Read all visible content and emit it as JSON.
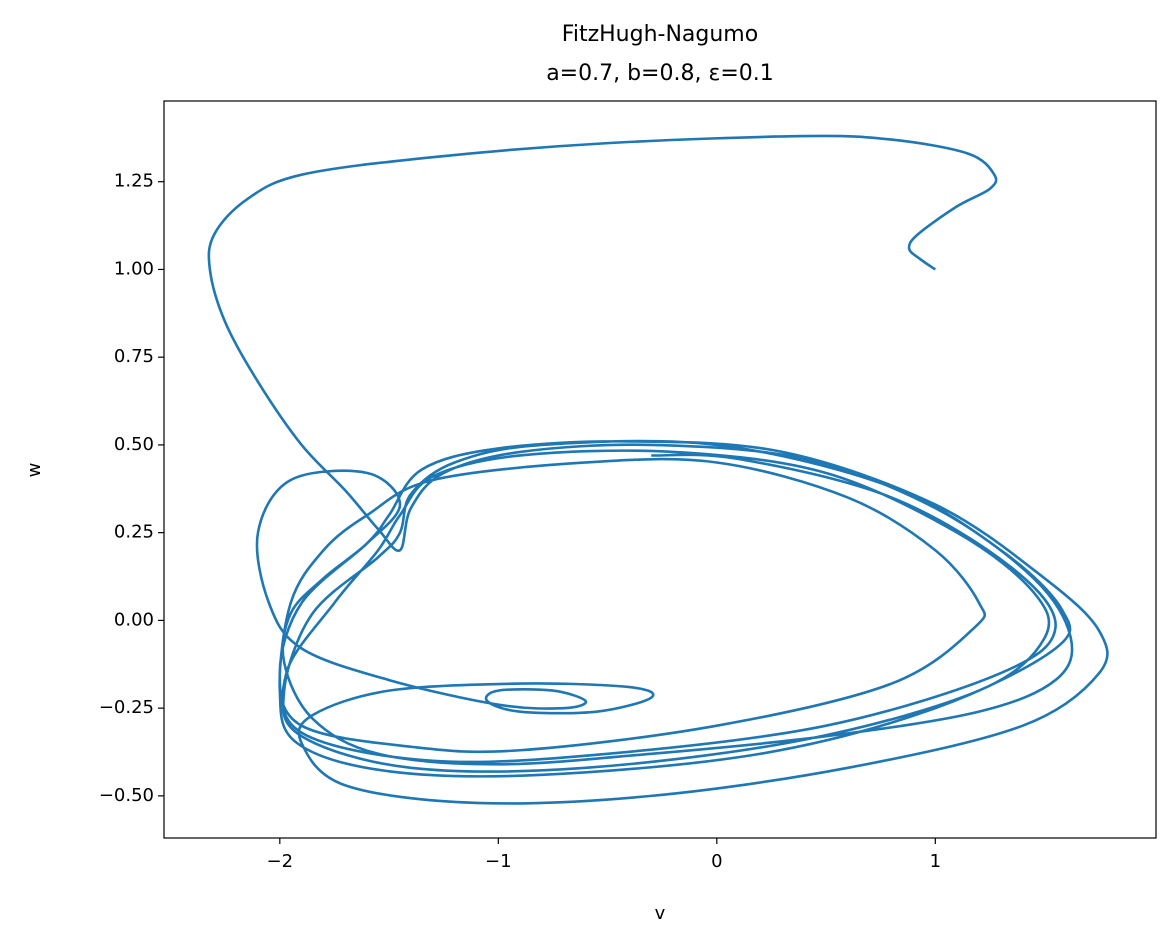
{
  "chart_data": {
    "type": "line",
    "title": "FitzHugh-Nagumo",
    "subtitle": "a=0.7, b=0.8, ε=0.1",
    "xlabel": "v",
    "ylabel": "w",
    "color": "#1f77b4",
    "grid": false,
    "xlim": [
      -2.53,
      2.01
    ],
    "ylim": [
      -0.62,
      1.48
    ],
    "xticks": [
      {
        "value": -2,
        "label": "−2"
      },
      {
        "value": -1,
        "label": "−1"
      },
      0,
      1
    ],
    "yticks": [
      {
        "value": -0.5,
        "label": "−0.50"
      },
      {
        "value": -0.25,
        "label": "−0.25"
      },
      {
        "value": 0,
        "label": "0.00"
      },
      0.25,
      {
        "value": 0.5,
        "label": "0.50"
      },
      0.75,
      {
        "value": 1,
        "label": "1.00"
      },
      1.25
    ],
    "x": [
      1,
      0.93,
      0.88,
      0.92,
      1.1,
      1.25,
      1.27,
      1.15,
      0.8,
      0.4,
      -0.5,
      -1.3,
      -1.9,
      -2.15,
      -2.3,
      -2.32,
      -2.25,
      -2.1,
      -1.9,
      -1.7,
      -1.55,
      -1.45,
      -1.4,
      -1.25,
      -0.9,
      -0.3,
      0.4,
      1.0,
      1.45,
      1.62,
      1.55,
      1.2,
      0.5,
      -0.3,
      -1.0,
      -1.55,
      -1.85,
      -1.98,
      -1.95,
      -1.8,
      -1.6,
      -1.45,
      -1.6,
      -1.95,
      -2.1,
      -2.05,
      -1.9,
      -1.5,
      -1.0,
      -0.7,
      -0.6,
      -0.75,
      -1.0,
      -1.05,
      -0.9,
      -0.55,
      -0.3,
      -0.4,
      -0.9,
      -1.5,
      -1.85,
      -1.9,
      -1.7,
      -1.1,
      -0.3,
      0.6,
      1.4,
      1.75,
      1.75,
      1.5,
      1.0,
      0.3,
      -0.4,
      -1.0,
      -1.35,
      -1.5,
      -1.6,
      -1.9,
      -2.0,
      -1.9,
      -1.4,
      -0.9,
      0,
      0.8,
      1.18,
      1.2,
      1.0,
      0.6,
      0.0,
      -0.6,
      -1.3,
      -1.6,
      -1.8,
      -1.95,
      -2.0,
      -1.92,
      -1.5,
      -0.8,
      0.2,
      1.0,
      1.55,
      1.58,
      1.3,
      0.8,
      0.0,
      -0.8,
      -1.2,
      -1.4,
      -1.45,
      -1.55,
      -1.85,
      -1.98,
      -1.9,
      -1.4,
      -0.6,
      0.4,
      1.2,
      1.5,
      1.45,
      1.1,
      0.5,
      -0.2,
      -0.9,
      -1.3,
      -1.45,
      -1.55,
      -1.75,
      -1.97,
      -1.9,
      -1.3,
      -0.5,
      0.5,
      1.3,
      1.55,
      1.35,
      0.8,
      0.1,
      -0.3
    ],
    "values": [
      1,
      1.03,
      1.06,
      1.1,
      1.18,
      1.23,
      1.27,
      1.33,
      1.37,
      1.38,
      1.36,
      1.32,
      1.27,
      1.2,
      1.1,
      1.0,
      0.85,
      0.68,
      0.5,
      0.37,
      0.26,
      0.2,
      0.32,
      0.42,
      0.48,
      0.5,
      0.46,
      0.32,
      0.12,
      -0.05,
      -0.17,
      -0.26,
      -0.33,
      -0.38,
      -0.41,
      -0.38,
      -0.28,
      -0.12,
      0.02,
      0.12,
      0.22,
      0.33,
      0.42,
      0.4,
      0.25,
      0.05,
      -0.08,
      -0.17,
      -0.24,
      -0.25,
      -0.23,
      -0.2,
      -0.2,
      -0.23,
      -0.26,
      -0.26,
      -0.22,
      -0.19,
      -0.18,
      -0.2,
      -0.27,
      -0.35,
      -0.47,
      -0.52,
      -0.5,
      -0.42,
      -0.3,
      -0.15,
      -0.03,
      0.12,
      0.33,
      0.48,
      0.51,
      0.49,
      0.43,
      0.3,
      0.22,
      0.05,
      -0.15,
      -0.3,
      -0.36,
      -0.37,
      -0.3,
      -0.18,
      -0.02,
      0.05,
      0.2,
      0.35,
      0.45,
      0.45,
      0.4,
      0.3,
      0.2,
      0.05,
      -0.2,
      -0.35,
      -0.43,
      -0.44,
      -0.38,
      -0.25,
      -0.08,
      0.03,
      0.2,
      0.38,
      0.5,
      0.5,
      0.45,
      0.36,
      0.25,
      0.18,
      0.02,
      -0.2,
      -0.33,
      -0.42,
      -0.42,
      -0.34,
      -0.2,
      -0.05,
      0.08,
      0.25,
      0.42,
      0.48,
      0.47,
      0.41,
      0.3,
      0.2,
      0.05,
      -0.15,
      -0.32,
      -0.4,
      -0.38,
      -0.3,
      -0.15,
      -0.02,
      0.15,
      0.35,
      0.46,
      0.47
    ]
  }
}
